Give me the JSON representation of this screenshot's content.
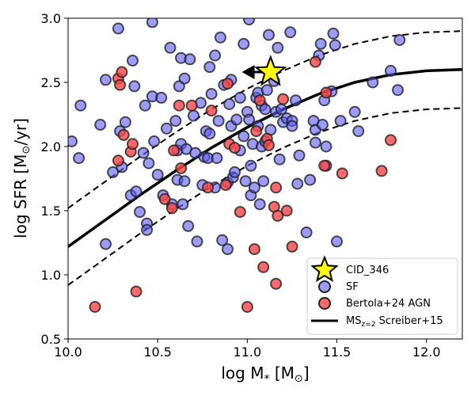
{
  "chart_data": {
    "type": "scatter",
    "xlabel": "log M",
    "xlabel_sub": "*",
    "xlabel_unit_open": " [M",
    "xlabel_unit_sym": "⊙",
    "xlabel_unit_close": "]",
    "ylabel": "log SFR [M",
    "ylabel_unit_sym": "⊙",
    "ylabel_unit_close": "/yr]",
    "xlim": [
      10.0,
      12.2
    ],
    "ylim": [
      0.5,
      3.0
    ],
    "xticks": [
      "10.0",
      "10.5",
      "11.0",
      "11.5",
      "12.0"
    ],
    "xtick_values": [
      10.0,
      10.5,
      11.0,
      11.5,
      12.0
    ],
    "yticks": [
      "0.5",
      "1.0",
      "1.5",
      "2.0",
      "2.5",
      "3.0"
    ],
    "ytick_values": [
      0.5,
      1.0,
      1.5,
      2.0,
      2.5,
      3.0
    ],
    "colors": {
      "sf_fill": "#5a5aff",
      "agn_fill": "#ff4444",
      "marker_edge": "#222222",
      "star_fill": "#ffff00",
      "line": "#000000"
    },
    "legend": {
      "position": "lower-right",
      "entries": [
        "CID_346",
        "SF",
        "Bertola+24 AGN",
        "MS",
        "z=2",
        " Screiber+15"
      ]
    },
    "main_sequence": {
      "name": "MS z=2 Screiber+15",
      "x": [
        10.0,
        10.2,
        10.4,
        10.6,
        10.8,
        11.0,
        11.2,
        11.4,
        11.6,
        11.8,
        12.0,
        12.2
      ],
      "y": [
        1.22,
        1.42,
        1.62,
        1.81,
        1.99,
        2.15,
        2.29,
        2.41,
        2.5,
        2.56,
        2.59,
        2.6
      ],
      "offset": 0.3
    },
    "target": {
      "name": "CID_346",
      "x": 11.13,
      "y": 2.58,
      "arrow_to_x": 10.97
    },
    "series": [
      {
        "name": "SF",
        "points": [
          [
            10.02,
            2.04
          ],
          [
            10.06,
            1.91
          ],
          [
            10.07,
            2.32
          ],
          [
            10.18,
            2.17
          ],
          [
            10.21,
            2.52
          ],
          [
            10.25,
            1.8
          ],
          [
            10.21,
            1.24
          ],
          [
            10.28,
            2.92
          ],
          [
            10.32,
            2.19
          ],
          [
            10.29,
            2.12
          ],
          [
            10.3,
            1.84
          ],
          [
            10.35,
            1.62
          ],
          [
            10.36,
            2.67
          ],
          [
            10.37,
            2.47
          ],
          [
            10.38,
            1.65
          ],
          [
            10.4,
            1.49
          ],
          [
            10.42,
            1.95
          ],
          [
            10.43,
            2.32
          ],
          [
            10.44,
            1.4
          ],
          [
            10.44,
            1.35
          ],
          [
            10.45,
            1.87
          ],
          [
            10.47,
            2.39
          ],
          [
            10.47,
            2.97
          ],
          [
            10.48,
            2.04
          ],
          [
            10.5,
            1.78
          ],
          [
            10.52,
            2.38
          ],
          [
            10.53,
            1.62
          ],
          [
            10.55,
            2.14
          ],
          [
            10.57,
            2.77
          ],
          [
            10.58,
            1.55
          ],
          [
            10.6,
            2.2
          ],
          [
            10.61,
            1.74
          ],
          [
            10.61,
            1.97
          ],
          [
            10.62,
            2.47
          ],
          [
            10.63,
            2.02
          ],
          [
            10.63,
            2.69
          ],
          [
            10.64,
            1.55
          ],
          [
            10.65,
            1.73
          ],
          [
            10.65,
            2.53
          ],
          [
            10.66,
            1.98
          ],
          [
            10.67,
            1.38
          ],
          [
            10.68,
            2.68
          ],
          [
            10.7,
            2.24
          ],
          [
            10.71,
            1.95
          ],
          [
            10.72,
            1.26
          ],
          [
            10.74,
            2.34
          ],
          [
            10.75,
            1.7
          ],
          [
            10.76,
            1.92
          ],
          [
            10.77,
            2.12
          ],
          [
            10.78,
            1.91
          ],
          [
            10.79,
            2.1
          ],
          [
            10.79,
            2.62
          ],
          [
            10.8,
            2.41
          ],
          [
            10.82,
            1.68
          ],
          [
            10.82,
            2.71
          ],
          [
            10.83,
            1.91
          ],
          [
            10.84,
            2.2
          ],
          [
            10.85,
            2.85
          ],
          [
            10.86,
            1.27
          ],
          [
            10.87,
            2.48
          ],
          [
            10.89,
            1.2
          ],
          [
            10.89,
            1.72
          ],
          [
            10.9,
            2.33
          ],
          [
            10.91,
            2.16
          ],
          [
            10.91,
            2.52
          ],
          [
            10.92,
            1.76
          ],
          [
            10.93,
            1.8
          ],
          [
            10.94,
            2.21
          ],
          [
            10.96,
            2.38
          ],
          [
            10.96,
            1.97
          ],
          [
            10.98,
            2.08
          ],
          [
            10.98,
            2.8
          ],
          [
            10.99,
            1.73
          ],
          [
            11.0,
            2.27
          ],
          [
            11.01,
            2.21
          ],
          [
            11.01,
            2.99
          ],
          [
            11.02,
            1.62
          ],
          [
            11.02,
            1.85
          ],
          [
            11.03,
            2.02
          ],
          [
            11.04,
            1.68
          ],
          [
            11.05,
            2.38
          ],
          [
            11.06,
            2.16
          ],
          [
            11.06,
            2.42
          ],
          [
            11.07,
            1.55
          ],
          [
            11.08,
            2.0
          ],
          [
            11.08,
            2.32
          ],
          [
            11.09,
            1.73
          ],
          [
            11.1,
            2.04
          ],
          [
            11.1,
            2.29
          ],
          [
            11.11,
            2.44
          ],
          [
            11.12,
            2.87
          ],
          [
            11.13,
            2.13
          ],
          [
            11.15,
            2.51
          ],
          [
            11.16,
            2.27
          ],
          [
            11.17,
            2.77
          ],
          [
            11.18,
            1.9
          ],
          [
            11.19,
            2.29
          ],
          [
            11.2,
            2.19
          ],
          [
            11.22,
            2.22
          ],
          [
            11.24,
            2.89
          ],
          [
            11.25,
            2.2
          ],
          [
            11.25,
            2.16
          ],
          [
            11.27,
            2.36
          ],
          [
            11.28,
            1.71
          ],
          [
            11.29,
            1.93
          ],
          [
            11.33,
            1.33
          ],
          [
            11.35,
            1.74
          ],
          [
            11.37,
            2.2
          ],
          [
            11.38,
            2.13
          ],
          [
            11.38,
            2.03
          ],
          [
            11.4,
            2.71
          ],
          [
            11.41,
            2.8
          ],
          [
            11.42,
            2.17
          ],
          [
            11.43,
            2.36
          ],
          [
            11.44,
            1.85
          ],
          [
            11.44,
            2.0
          ],
          [
            11.47,
            2.43
          ],
          [
            11.48,
            2.88
          ],
          [
            11.49,
            2.79
          ],
          [
            11.5,
            1.26
          ],
          [
            11.52,
            2.2
          ],
          [
            11.6,
            2.27
          ],
          [
            11.62,
            2.12
          ],
          [
            11.7,
            2.5
          ],
          [
            11.8,
            2.59
          ],
          [
            11.85,
            2.83
          ],
          [
            11.84,
            2.44
          ]
        ]
      },
      {
        "name": "Bertola+24 AGN",
        "points": [
          [
            10.15,
            0.75
          ],
          [
            10.28,
            1.89
          ],
          [
            10.28,
            2.53
          ],
          [
            10.29,
            2.48
          ],
          [
            10.3,
            2.58
          ],
          [
            10.31,
            2.09
          ],
          [
            10.35,
            1.96
          ],
          [
            10.36,
            2.02
          ],
          [
            10.38,
            0.87
          ],
          [
            10.54,
            1.59
          ],
          [
            10.58,
            1.52
          ],
          [
            10.59,
            1.97
          ],
          [
            10.62,
            2.32
          ],
          [
            10.63,
            1.83
          ],
          [
            10.69,
            2.32
          ],
          [
            10.78,
            1.68
          ],
          [
            10.8,
            2.28
          ],
          [
            10.88,
            1.7
          ],
          [
            10.89,
            2.49
          ],
          [
            10.9,
            2.02
          ],
          [
            10.93,
            1.99
          ],
          [
            10.96,
            1.49
          ],
          [
            11.0,
            0.75
          ],
          [
            11.04,
            1.2
          ],
          [
            11.05,
            2.12
          ],
          [
            11.07,
            2.36
          ],
          [
            11.09,
            1.06
          ],
          [
            11.11,
            2.06
          ],
          [
            11.12,
            2.01
          ],
          [
            11.15,
            1.53
          ],
          [
            11.16,
            1.68
          ],
          [
            11.16,
            0.93
          ],
          [
            11.17,
            1.46
          ],
          [
            11.2,
            2.37
          ],
          [
            11.22,
            1.5
          ],
          [
            11.25,
            1.22
          ],
          [
            11.38,
            2.66
          ],
          [
            11.43,
            1.85
          ],
          [
            11.44,
            2.42
          ],
          [
            11.53,
            1.79
          ],
          [
            11.75,
            1.81
          ],
          [
            11.8,
            2.05
          ]
        ]
      }
    ]
  }
}
